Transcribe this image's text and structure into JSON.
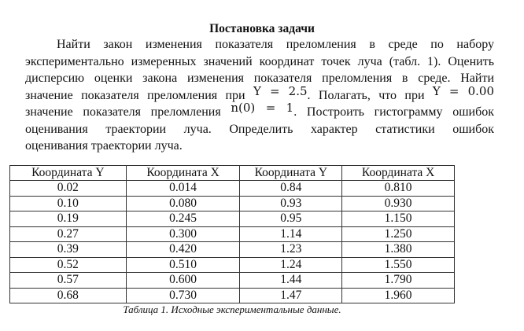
{
  "title": "Постановка задачи",
  "paragraph": {
    "line1": "Найти закон изменения показателя преломления в среде по набору",
    "line2": "экспериментально измеренных значений координат точек луча (табл. 1). Оценить",
    "line3": "дисперсию оценки закона изменения показателя преломления в среде. Найти",
    "line4a": "значение показателя преломления при",
    "math1": "Y = 2.5",
    "line4b": ". Полагать, что при",
    "math2": "Y = 0.00",
    "line5a": "значение показателя преломления",
    "math3": "n(0) = 1",
    "line5b": ". Построить гистограмму ошибок",
    "line6": "оценивания траектории луча. Определить характер статистики ошибок",
    "line7": "оценивания траектории луча."
  },
  "table": {
    "headers": [
      "Координата Y",
      "Координата X",
      "Координата Y",
      "Координата X"
    ],
    "rows": [
      [
        "0.02",
        "0.014",
        "0.84",
        "0.810"
      ],
      [
        "0.10",
        "0.080",
        "0.93",
        "0.930"
      ],
      [
        "0.19",
        "0.245",
        "0.95",
        "1.150"
      ],
      [
        "0.27",
        "0.300",
        "1.14",
        "1.250"
      ],
      [
        "0.39",
        "0.420",
        "1.23",
        "1.380"
      ],
      [
        "0.52",
        "0.510",
        "1.24",
        "1.550"
      ],
      [
        "0.57",
        "0.600",
        "1.44",
        "1.790"
      ],
      [
        "0.68",
        "0.730",
        "1.47",
        "1.960"
      ]
    ],
    "caption": "Таблица 1. Исходные экспериментальные данные."
  }
}
